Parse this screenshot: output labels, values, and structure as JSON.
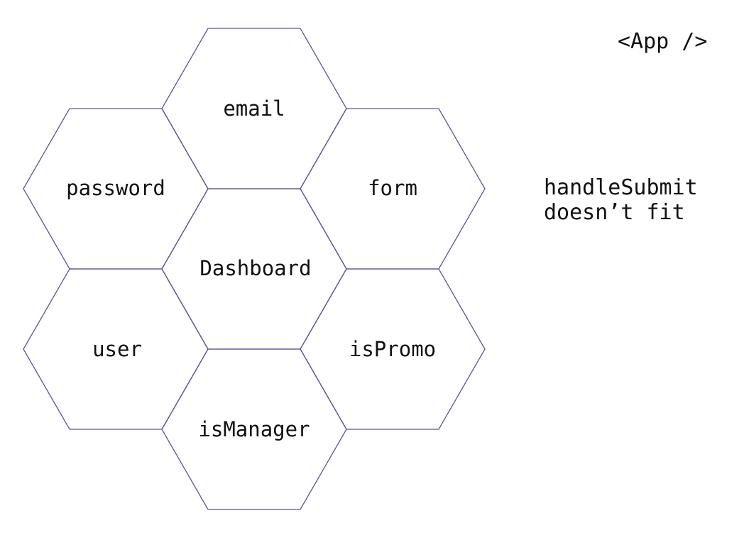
{
  "component_title": "<App />",
  "note": {
    "line1": "handleSubmit",
    "line2": "doesn’t fit"
  },
  "hexagons": [
    {
      "id": "email",
      "label": "email"
    },
    {
      "id": "password",
      "label": "password"
    },
    {
      "id": "form",
      "label": "form"
    },
    {
      "id": "dashboard",
      "label": "Dashboard"
    },
    {
      "id": "user",
      "label": "user"
    },
    {
      "id": "ispromo",
      "label": "isPromo"
    },
    {
      "id": "ismanager",
      "label": "isManager"
    }
  ],
  "colors": {
    "hex_stroke": "#5b5596",
    "text": "#111111",
    "background": "#ffffff"
  }
}
